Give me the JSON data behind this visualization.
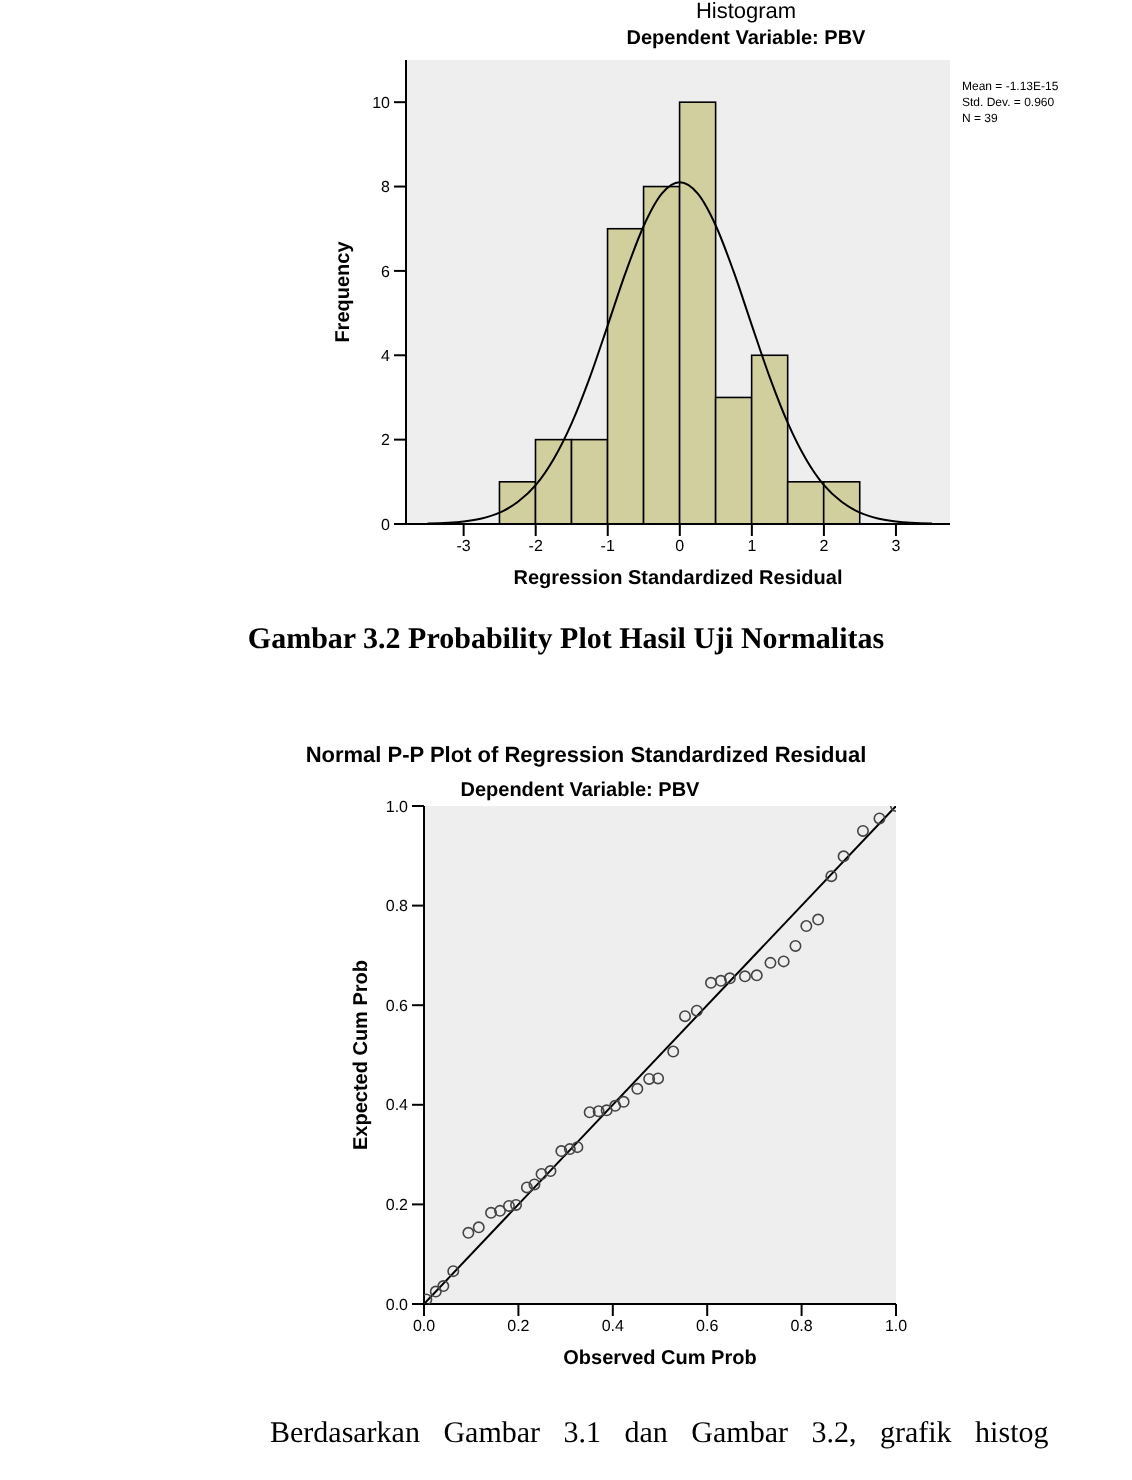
{
  "chart_data": [
    {
      "type": "histogram",
      "title": "Histogram",
      "subtitle": "Dependent Variable: PBV",
      "xlabel": "Regression Standardized Residual",
      "ylabel": "Frequency",
      "bins": [
        -2.5,
        -2,
        -1.5,
        -1,
        -0.5,
        0,
        0.5,
        1,
        1.5,
        2,
        2.5
      ],
      "xlim": [
        -3.8,
        3.75
      ],
      "xticks": [
        -3,
        -2,
        -1,
        0,
        1,
        2,
        3
      ],
      "ylim": [
        0,
        11
      ],
      "yticks": [
        0,
        2,
        4,
        6,
        8,
        10
      ],
      "grid": false,
      "annotations": [
        "Mean = -1.13E-15",
        "Std. Dev. = 0.960",
        "N = 39"
      ],
      "series": [
        {
          "type": "histogram",
          "color": "#d2cf9f",
          "values": [
            1,
            2,
            2,
            7,
            8,
            10,
            3,
            4,
            1,
            1
          ]
        },
        {
          "type": "line",
          "color": "#000000",
          "x": [
            -3.5,
            -3,
            -2.75,
            -2.5,
            -2.25,
            -2,
            -1.75,
            -1.5,
            -1.25,
            -1,
            -0.75,
            -0.5,
            -0.25,
            0,
            0.25,
            0.5,
            0.75,
            1,
            1.25,
            1.5,
            1.75,
            2,
            2.25,
            2.5,
            2.75,
            3,
            3.5
          ],
          "values": [
            0.01,
            0.06,
            0.13,
            0.27,
            0.52,
            0.92,
            1.54,
            2.39,
            3.47,
            4.71,
            5.97,
            7.07,
            7.83,
            8.1,
            7.83,
            7.07,
            5.97,
            4.71,
            3.47,
            2.39,
            1.54,
            0.92,
            0.52,
            0.27,
            0.13,
            0.06,
            0.01
          ]
        }
      ]
    },
    {
      "type": "scatter",
      "title": "Normal P-P Plot of Regression Standardized Residual",
      "subtitle": "Dependent Variable: PBV",
      "xlabel": "Observed Cum Prob",
      "ylabel": "Expected Cum Prob",
      "xlim": [
        0,
        1
      ],
      "ylim": [
        0,
        1
      ],
      "xticks": [
        {
          "value": 0,
          "label": "0.0"
        },
        {
          "value": 0.2,
          "label": "0.2"
        },
        {
          "value": 0.4,
          "label": "0.4"
        },
        {
          "value": 0.6,
          "label": "0.6"
        },
        {
          "value": 0.8,
          "label": "0.8"
        },
        {
          "value": 1,
          "label": "1.0"
        }
      ],
      "yticks": [
        {
          "value": 0,
          "label": "0.0"
        },
        {
          "value": 0.2,
          "label": "0.2"
        },
        {
          "value": 0.4,
          "label": "0.4"
        },
        {
          "value": 0.6,
          "label": "0.6"
        },
        {
          "value": 0.8,
          "label": "0.8"
        },
        {
          "value": 1,
          "label": "1.0"
        }
      ],
      "grid": false,
      "annotations": [
        "Gambar 3.2 Probability Plot Hasil Uji Normalitas",
        "Berdasarkan Gambar 3.1 dan Gambar 3.2, grafik histog"
      ],
      "series": [
        {
          "type": "scatter",
          "color": "#444444",
          "marker": "circle",
          "x": [
            0.005,
            0.025,
            0.041,
            0.062,
            0.094,
            0.116,
            0.142,
            0.161,
            0.18,
            0.195,
            0.218,
            0.234,
            0.249,
            0.268,
            0.291,
            0.309,
            0.325,
            0.351,
            0.37,
            0.387,
            0.405,
            0.423,
            0.452,
            0.477,
            0.496,
            0.528,
            0.553,
            0.578,
            0.608,
            0.629,
            0.648,
            0.68,
            0.705,
            0.734,
            0.762,
            0.787,
            0.81,
            0.835,
            0.863,
            0.889,
            0.93,
            0.965,
            1.0
          ],
          "values": [
            0.009,
            0.025,
            0.036,
            0.066,
            0.143,
            0.154,
            0.183,
            0.187,
            0.197,
            0.199,
            0.234,
            0.24,
            0.261,
            0.267,
            0.307,
            0.311,
            0.315,
            0.385,
            0.387,
            0.389,
            0.398,
            0.406,
            0.432,
            0.452,
            0.453,
            0.507,
            0.578,
            0.589,
            0.645,
            0.649,
            0.654,
            0.658,
            0.66,
            0.685,
            0.688,
            0.719,
            0.759,
            0.772,
            0.859,
            0.899,
            0.95,
            0.975,
            1.0
          ]
        },
        {
          "type": "line",
          "color": "#000000",
          "x": [
            0,
            1
          ],
          "values": [
            0,
            1
          ]
        }
      ]
    }
  ]
}
